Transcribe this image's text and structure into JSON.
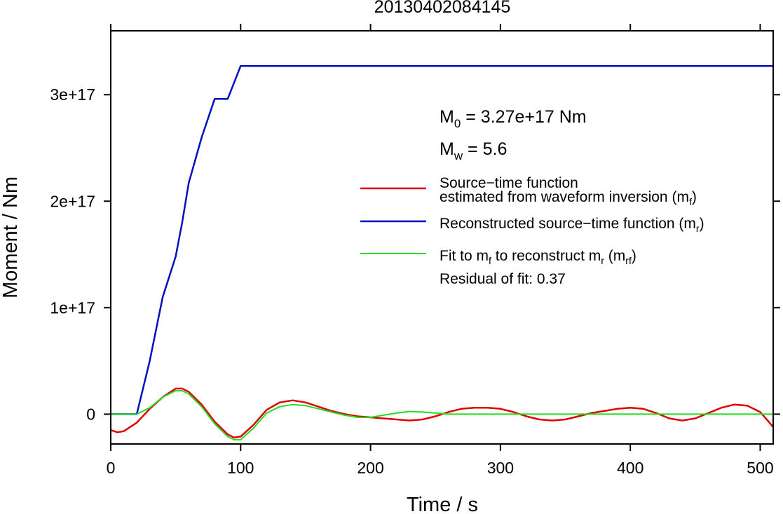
{
  "chart_data": {
    "type": "line",
    "title": "20130402084145",
    "xlabel": "Time / s",
    "ylabel": "Moment / Nm",
    "xlim": [
      0,
      510
    ],
    "ylim": [
      -2.8e+16,
      3.6e+17
    ],
    "x_ticks": [
      0,
      100,
      200,
      300,
      400,
      500
    ],
    "y_ticks": [
      0,
      1e+17,
      2e+17,
      3e+17
    ],
    "x_tick_labels": [
      "0",
      "100",
      "200",
      "300",
      "400",
      "500"
    ],
    "y_tick_labels": [
      "0",
      "1e+17",
      "2e+17",
      "3e+17"
    ],
    "grid": false,
    "legend_position": "right",
    "annotations": {
      "m0": {
        "main": "M",
        "sub": "0",
        "rest": " = 3.27e+17 Nm"
      },
      "mw": {
        "main": "M",
        "sub": "w",
        "rest": " = 5.6"
      },
      "residual": "Residual of fit: 0.37"
    },
    "legend": [
      {
        "line1": "Source−time function",
        "line2a": "estimated from waveform inversion (m",
        "line2sub": "f",
        "line2b": ")",
        "color": "#e00000"
      },
      {
        "line1a": "Reconstructed source−time function (m",
        "line1sub": "r",
        "line1b": ")",
        "color": "#0010c0"
      },
      {
        "p1": "Fit to m",
        "s1": "f",
        "p2": " to reconstruct m",
        "s2": "r",
        "p3": " (m",
        "s3": "rf",
        "p4": ")",
        "color": "#22dd22"
      }
    ],
    "series": [
      {
        "color": "#e00000",
        "x": [
          0,
          5,
          10,
          20,
          30,
          40,
          50,
          55,
          60,
          70,
          80,
          90,
          95,
          100,
          110,
          120,
          130,
          140,
          150,
          160,
          170,
          180,
          190,
          200,
          210,
          220,
          230,
          240,
          250,
          260,
          270,
          280,
          290,
          300,
          310,
          320,
          330,
          340,
          350,
          360,
          370,
          380,
          390,
          400,
          410,
          420,
          430,
          440,
          450,
          460,
          470,
          480,
          490,
          500,
          510
        ],
        "y": [
          -1.5e+16,
          -1.7e+16,
          -1.6e+16,
          -8000000000000000.0,
          5000000000000000.0,
          1.6e+16,
          2.4e+16,
          2.4e+16,
          2.1e+16,
          9000000000000000.0,
          -7000000000000000.0,
          -1.9e+16,
          -2.2e+16,
          -2.1e+16,
          -1e+16,
          4000000000000000.0,
          1.1e+16,
          1.3e+16,
          1.1e+16,
          7000000000000000.0,
          3000000000000000.0,
          0.0,
          -2000000000000000.0,
          -3000000000000000.0,
          -4000000000000000.0,
          -5000000000000000.0,
          -6000000000000000.0,
          -5000000000000000.0,
          -2000000000000000.0,
          2000000000000000.0,
          5000000000000000.0,
          6000000000000000.0,
          6000000000000000.0,
          5000000000000000.0,
          2000000000000000.0,
          -2000000000000000.0,
          -5000000000000000.0,
          -6000000000000000.0,
          -5000000000000000.0,
          -2000000000000000.0,
          1000000000000000.0,
          3000000000000000.0,
          5000000000000000.0,
          6000000000000000.0,
          5000000000000000.0,
          1000000000000000.0,
          -4000000000000000.0,
          -6000000000000000.0,
          -4000000000000000.0,
          1000000000000000.0,
          6000000000000000.0,
          9000000000000000.0,
          8000000000000000.0,
          2000000000000000.0,
          -1.2e+16
        ]
      },
      {
        "color": "#0010c0",
        "x": [
          0,
          20,
          30,
          40,
          50,
          55,
          60,
          70,
          80,
          90,
          100,
          510
        ],
        "y": [
          0,
          0,
          5e+16,
          1.1e+17,
          1.48e+17,
          1.8e+17,
          2.17e+17,
          2.6e+17,
          2.96e+17,
          2.96e+17,
          3.27e+17,
          3.27e+17
        ]
      },
      {
        "color": "#22dd22",
        "x": [
          0,
          10,
          20,
          30,
          40,
          50,
          55,
          60,
          70,
          80,
          90,
          95,
          100,
          110,
          120,
          130,
          140,
          150,
          160,
          170,
          180,
          190,
          200,
          210,
          220,
          230,
          240,
          250,
          260,
          270,
          280,
          510
        ],
        "y": [
          0,
          0,
          0,
          6000000000000000.0,
          1.6e+16,
          2.2e+16,
          2.2e+16,
          1.9e+16,
          7000000000000000.0,
          -9000000000000000.0,
          -2.1e+16,
          -2.4e+16,
          -2.4e+16,
          -1.3e+16,
          1000000000000000.0,
          7000000000000000.0,
          9000000000000000.0,
          8000000000000000.0,
          5000000000000000.0,
          2000000000000000.0,
          -1000000000000000.0,
          -3000000000000000.0,
          -3000000000000000.0,
          -1000000000000000.0,
          1000000000000000.0,
          2500000000000000.0,
          2000000000000000.0,
          1000000000000000.0,
          0.0,
          0.0,
          0.0,
          0.0
        ]
      }
    ]
  }
}
